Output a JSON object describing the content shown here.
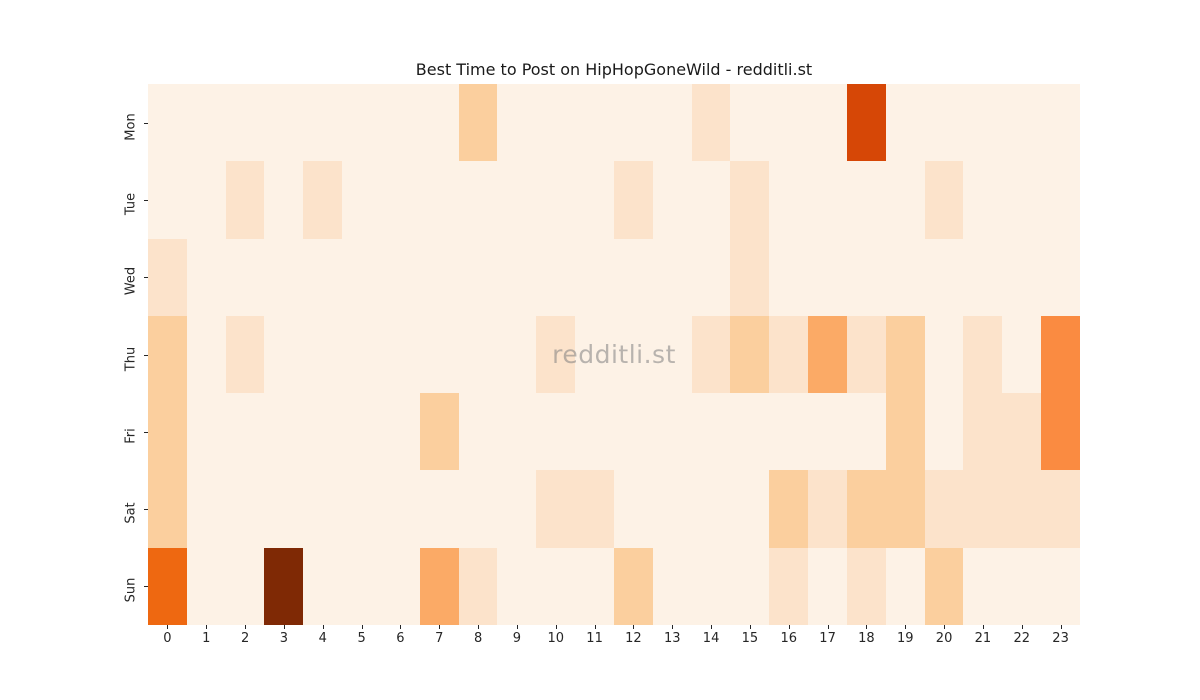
{
  "title": "Best Time to Post on HipHopGoneWild - redditli.st",
  "watermark": "redditli.st",
  "colors": {
    "figure_bg": "#ffffff",
    "text": "#262626",
    "watermark_gray": "#b3b3b3",
    "oranges_palette": [
      "#fdf2e6",
      "#fce3cb",
      "#fbcf9e",
      "#fbaa66",
      "#fa8b41",
      "#ee6811",
      "#d64706",
      "#a63603",
      "#7f2905"
    ]
  },
  "chart_data": {
    "type": "heatmap",
    "title": "Best Time to Post on HipHopGoneWild - redditli.st",
    "colormap": "Oranges",
    "grid": false,
    "legend": "none",
    "value_range": [
      0,
      8
    ],
    "x_tick_labels": [
      "0",
      "1",
      "2",
      "3",
      "4",
      "5",
      "6",
      "7",
      "8",
      "9",
      "10",
      "11",
      "12",
      "13",
      "14",
      "15",
      "16",
      "17",
      "18",
      "19",
      "20",
      "21",
      "22",
      "23"
    ],
    "y_tick_labels": [
      "Mon",
      "Tue",
      "Wed",
      "Thu",
      "Fri",
      "Sat",
      "Sun"
    ],
    "values": [
      [
        0,
        0,
        0,
        0,
        0,
        0,
        0,
        0,
        2,
        0,
        0,
        0,
        0,
        0,
        1,
        0,
        0,
        0,
        6,
        0,
        0,
        0,
        0,
        0
      ],
      [
        0,
        0,
        1,
        0,
        1,
        0,
        0,
        0,
        0,
        0,
        0,
        0,
        1,
        0,
        0,
        1,
        0,
        0,
        0,
        0,
        1,
        0,
        0,
        0
      ],
      [
        1,
        0,
        0,
        0,
        0,
        0,
        0,
        0,
        0,
        0,
        0,
        0,
        0,
        0,
        0,
        1,
        0,
        0,
        0,
        0,
        0,
        0,
        0,
        0
      ],
      [
        2,
        0,
        1,
        0,
        0,
        0,
        0,
        0,
        0,
        0,
        1,
        0,
        0,
        0,
        1,
        2,
        1,
        3,
        1,
        2,
        0,
        1,
        0,
        4
      ],
      [
        2,
        0,
        0,
        0,
        0,
        0,
        0,
        2,
        0,
        0,
        0,
        0,
        0,
        0,
        0,
        0,
        0,
        0,
        0,
        2,
        0,
        1,
        1,
        4
      ],
      [
        2,
        0,
        0,
        0,
        0,
        0,
        0,
        0,
        0,
        0,
        1,
        1,
        0,
        0,
        0,
        0,
        2,
        1,
        2,
        2,
        1,
        1,
        1,
        1
      ],
      [
        5,
        0,
        0,
        8,
        0,
        0,
        0,
        3,
        1,
        0,
        0,
        0,
        2,
        0,
        0,
        0,
        1,
        0,
        1,
        0,
        2,
        0,
        0,
        0
      ]
    ]
  }
}
